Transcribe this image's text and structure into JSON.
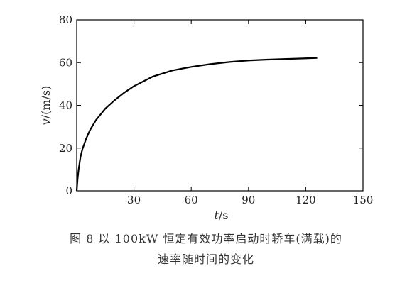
{
  "caption": {
    "line1": "图 8  以 100kW 恒定有效功率启动时轿车(满载)的",
    "line2": "速率随时间的变化"
  },
  "chart_data": {
    "type": "line",
    "xlabel_var": "t",
    "xlabel_unit": "/s",
    "ylabel_var": "v",
    "ylabel_unit": "/(m/s)",
    "xlim": [
      0,
      150
    ],
    "ylim": [
      0,
      80
    ],
    "xticks": [
      30,
      60,
      90,
      120,
      150
    ],
    "yticks": [
      0,
      20,
      40,
      60,
      80
    ],
    "grid": false,
    "line_color": "#000000",
    "series": [
      {
        "x": [
          0,
          0.5,
          1,
          2,
          3,
          5,
          7,
          10,
          15,
          20,
          25,
          30,
          40,
          50,
          60,
          70,
          80,
          90,
          100,
          110,
          120,
          126
        ],
        "y": [
          0,
          6,
          10,
          16,
          19.5,
          24.5,
          28.5,
          33,
          38.5,
          42.5,
          46,
          49,
          53.5,
          56.3,
          58,
          59.3,
          60.3,
          61,
          61.4,
          61.7,
          62,
          62.2
        ]
      }
    ]
  }
}
